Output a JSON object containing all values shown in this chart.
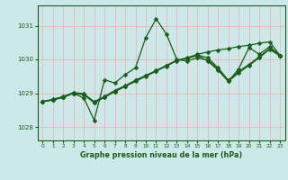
{
  "title": "Graphe pression niveau de la mer (hPa)",
  "bg_color": "#cce8e8",
  "grid_color": "#e8b8b8",
  "line_color": "#1a5c1a",
  "xlim": [
    -0.5,
    23.5
  ],
  "ylim": [
    1027.6,
    1031.6
  ],
  "yticks": [
    1028,
    1029,
    1030,
    1031
  ],
  "xticks": [
    0,
    1,
    2,
    3,
    4,
    5,
    6,
    7,
    8,
    9,
    10,
    11,
    12,
    13,
    14,
    15,
    16,
    17,
    18,
    19,
    20,
    21,
    22,
    23
  ],
  "line1_x": [
    0,
    1,
    2,
    3,
    4,
    5,
    6,
    7,
    8,
    9,
    10,
    11,
    12,
    13,
    14,
    15,
    16,
    17,
    18,
    19,
    20,
    21,
    22,
    23
  ],
  "line1_y": [
    1028.75,
    1028.8,
    1028.88,
    1029.0,
    1028.85,
    1028.2,
    1029.4,
    1029.3,
    1029.55,
    1029.75,
    1030.65,
    1031.2,
    1030.75,
    1030.0,
    1029.95,
    1030.05,
    1029.98,
    1029.72,
    1029.35,
    1029.72,
    1030.35,
    1030.15,
    1030.38,
    1030.12
  ],
  "line2_x": [
    0,
    1,
    2,
    3,
    4,
    5,
    6,
    7,
    8,
    9,
    10,
    11,
    12,
    13,
    14,
    15,
    16,
    17,
    18,
    19,
    20,
    21,
    22,
    23
  ],
  "line2_y": [
    1028.75,
    1028.82,
    1028.9,
    1029.02,
    1028.98,
    1028.75,
    1028.9,
    1029.08,
    1029.22,
    1029.38,
    1029.52,
    1029.67,
    1029.82,
    1029.97,
    1030.05,
    1030.15,
    1030.22,
    1030.28,
    1030.32,
    1030.38,
    1030.42,
    1030.48,
    1030.52,
    1030.12
  ],
  "line3_x": [
    0,
    1,
    2,
    3,
    4,
    5,
    6,
    7,
    8,
    9,
    10,
    11,
    12,
    13,
    14,
    15,
    16,
    17,
    18,
    19,
    20,
    21,
    22,
    23
  ],
  "line3_y": [
    1028.75,
    1028.8,
    1028.88,
    1029.0,
    1028.95,
    1028.72,
    1028.88,
    1029.05,
    1029.2,
    1029.35,
    1029.5,
    1029.65,
    1029.82,
    1029.97,
    1030.03,
    1030.12,
    1029.95,
    1029.68,
    1029.35,
    1029.6,
    1029.82,
    1030.05,
    1030.3,
    1030.1
  ],
  "line4_x": [
    0,
    1,
    2,
    3,
    4,
    5,
    6,
    7,
    8,
    9,
    10,
    11,
    12,
    13,
    14,
    15,
    16,
    17,
    18,
    19,
    20,
    21,
    22,
    23
  ],
  "line4_y": [
    1028.75,
    1028.8,
    1028.88,
    1029.0,
    1028.97,
    1028.72,
    1028.88,
    1029.05,
    1029.2,
    1029.38,
    1029.52,
    1029.66,
    1029.8,
    1029.96,
    1030.03,
    1030.13,
    1030.05,
    1029.75,
    1029.38,
    1029.65,
    1029.85,
    1030.08,
    1030.32,
    1030.12
  ]
}
